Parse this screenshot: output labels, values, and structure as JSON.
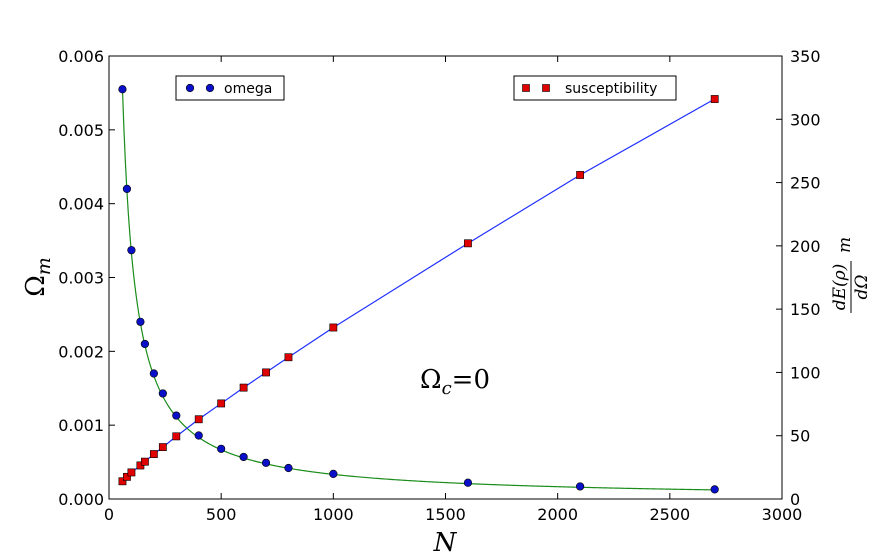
{
  "chart_data": {
    "type": "scatter",
    "title": "",
    "annotation": {
      "text": "Ω",
      "sub": "c",
      "rest": "=0"
    },
    "x_axis": {
      "label": "N",
      "range": [
        0,
        3000
      ],
      "ticks": [
        0,
        500,
        1000,
        1500,
        2000,
        2500,
        3000
      ],
      "tick_labels": [
        "0",
        "500",
        "1000",
        "1500",
        "2000",
        "2500",
        "3000"
      ]
    },
    "y_axis_left": {
      "label": "Ω",
      "label_sub": "m",
      "range": [
        0,
        0.006
      ],
      "ticks": [
        0,
        0.001,
        0.002,
        0.003,
        0.004,
        0.005,
        0.006
      ],
      "tick_labels": [
        "0.000",
        "0.001",
        "0.002",
        "0.003",
        "0.004",
        "0.005",
        "0.006"
      ]
    },
    "y_axis_right": {
      "label_numerator": "dE(ρ)",
      "label_denominator": "dΩ",
      "label_suffix": "m",
      "range": [
        0,
        350
      ],
      "ticks": [
        0,
        50,
        100,
        150,
        200,
        250,
        300,
        350
      ],
      "tick_labels": [
        "0",
        "50",
        "100",
        "150",
        "200",
        "250",
        "300",
        "350"
      ]
    },
    "grid": false,
    "series": [
      {
        "name": "omega",
        "axis": "left",
        "marker": "circle",
        "marker_color": "#0a10c8",
        "line_color": "#1a8c1a",
        "fit": "A/N",
        "fit_A": 0.3333,
        "x": [
          60,
          80,
          100,
          140,
          160,
          200,
          240,
          300,
          400,
          500,
          600,
          700,
          800,
          1000,
          1600,
          2100,
          2700
        ],
        "y": [
          0.00555,
          0.0042,
          0.00337,
          0.0024,
          0.0021,
          0.0017,
          0.00143,
          0.00113,
          0.00086,
          0.00068,
          0.00057,
          0.00049,
          0.00042,
          0.00034,
          0.00022,
          0.00017,
          0.00013
        ]
      },
      {
        "name": "susceptibility",
        "axis": "right",
        "marker": "square",
        "marker_color": "#e00000",
        "line_color": "#1f2fff",
        "x": [
          60,
          80,
          100,
          140,
          160,
          200,
          240,
          300,
          400,
          500,
          600,
          700,
          800,
          1000,
          1600,
          2100,
          2700
        ],
        "y": [
          14,
          17.5,
          21,
          26.5,
          29.5,
          35.5,
          41,
          49.5,
          63,
          75.5,
          88,
          100,
          112,
          135.5,
          202,
          256,
          316
        ]
      }
    ],
    "legend": [
      {
        "label": "omega",
        "position": "top-left"
      },
      {
        "label": "susceptibility",
        "position": "top-right"
      }
    ]
  }
}
